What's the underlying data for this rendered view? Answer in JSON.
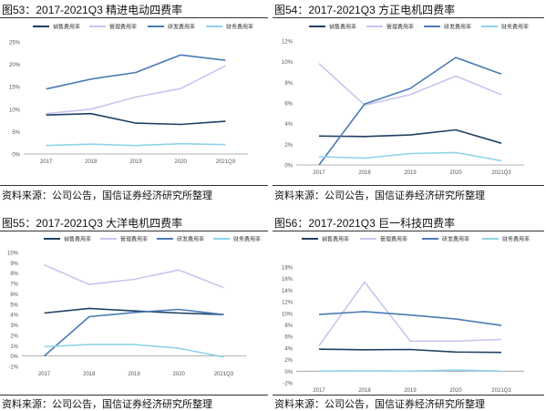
{
  "colors": {
    "sales": "#1f3f63",
    "mgmt": "#c9c5ee",
    "rd": "#4a7bb5",
    "fin": "#8fd3ea"
  },
  "chart_data": [
    {
      "type": "line",
      "title": "图53：2017-2021Q3 精进电动四费率",
      "source": "资料来源：公司公告，国信证券经济研究所整理",
      "categories": [
        "2017",
        "2018",
        "2019",
        "2020",
        "2021Q3"
      ],
      "yticks": [
        "0%",
        "5%",
        "10%",
        "15%",
        "20%",
        "25%"
      ],
      "ylim": [
        0,
        25
      ],
      "legend_position": "top",
      "series": [
        {
          "name": "销售费用率",
          "color_key": "sales",
          "values": [
            8.7,
            9.0,
            6.9,
            6.6,
            7.3
          ]
        },
        {
          "name": "管理费用率",
          "color_key": "mgmt",
          "values": [
            9.0,
            10.0,
            12.7,
            14.6,
            19.7
          ]
        },
        {
          "name": "研发费用率",
          "color_key": "rd",
          "values": [
            14.5,
            16.7,
            18.2,
            22.1,
            20.9
          ]
        },
        {
          "name": "财务费用率",
          "color_key": "fin",
          "values": [
            1.9,
            2.2,
            1.9,
            2.3,
            2.1
          ]
        }
      ]
    },
    {
      "type": "line",
      "title": "图54：2017-2021Q3 方正电机四费率",
      "source": "资料来源：公司公告，国信证券经济研究所整理",
      "categories": [
        "2017",
        "2018",
        "2019",
        "2020",
        "2021Q3"
      ],
      "yticks": [
        "0%",
        "2%",
        "4%",
        "6%",
        "8%",
        "10%",
        "12%"
      ],
      "ylim": [
        0,
        12
      ],
      "legend_position": "top",
      "series": [
        {
          "name": "销售费用率",
          "color_key": "sales",
          "values": [
            2.8,
            2.75,
            2.9,
            3.4,
            2.1
          ]
        },
        {
          "name": "管理费用率",
          "color_key": "mgmt",
          "values": [
            9.8,
            5.8,
            6.8,
            8.6,
            6.8
          ]
        },
        {
          "name": "研发费用率",
          "color_key": "rd",
          "values": [
            0.0,
            5.9,
            7.4,
            10.4,
            8.8
          ]
        },
        {
          "name": "财务费用率",
          "color_key": "fin",
          "values": [
            0.8,
            0.65,
            1.1,
            1.2,
            0.4
          ]
        }
      ]
    },
    {
      "type": "line",
      "title": "图55：2017-2021Q3 大洋电机四费率",
      "source": "资料来源：公司公告，国信证券经济研究所整理",
      "categories": [
        "2017",
        "2018",
        "2019",
        "2020",
        "2021Q3"
      ],
      "yticks": [
        "-1%",
        "0%",
        "1%",
        "2%",
        "3%",
        "4%",
        "5%",
        "6%",
        "7%",
        "8%",
        "9%",
        "10%"
      ],
      "ylim": [
        -1,
        10
      ],
      "legend_position": "top",
      "series": [
        {
          "name": "销售费用率",
          "color_key": "sales",
          "values": [
            4.15,
            4.6,
            4.35,
            4.15,
            4.0
          ]
        },
        {
          "name": "管理费用率",
          "color_key": "mgmt",
          "values": [
            8.8,
            6.9,
            7.4,
            8.3,
            6.6
          ]
        },
        {
          "name": "研发费用率",
          "color_key": "rd",
          "values": [
            0.0,
            3.8,
            4.2,
            4.5,
            4.0
          ]
        },
        {
          "name": "财务费用率",
          "color_key": "fin",
          "values": [
            0.9,
            1.1,
            1.1,
            0.75,
            -0.1
          ]
        }
      ]
    },
    {
      "type": "line",
      "title": "图56：2017-2021Q3 巨一科技四费率",
      "source": "资料来源：公司公告，国信证券经济研究所整理",
      "categories": [
        "2017",
        "2018",
        "2019",
        "2020",
        "2021Q3"
      ],
      "yticks": [
        "-2%",
        "0%",
        "2%",
        "4%",
        "6%",
        "8%",
        "10%",
        "12%",
        "14%",
        "16%",
        "18%"
      ],
      "ylim": [
        -2,
        18
      ],
      "legend_position": "top",
      "series": [
        {
          "name": "销售费用率",
          "color_key": "sales",
          "values": [
            3.8,
            3.7,
            3.75,
            3.3,
            3.25
          ]
        },
        {
          "name": "管理费用率",
          "color_key": "mgmt",
          "values": [
            4.4,
            15.4,
            5.2,
            5.2,
            5.5
          ]
        },
        {
          "name": "研发费用率",
          "color_key": "rd",
          "values": [
            9.8,
            10.3,
            9.7,
            9.0,
            7.9
          ]
        },
        {
          "name": "财务费用率",
          "color_key": "fin",
          "values": [
            0.0,
            0.05,
            0.0,
            0.2,
            0.0
          ]
        }
      ]
    }
  ]
}
